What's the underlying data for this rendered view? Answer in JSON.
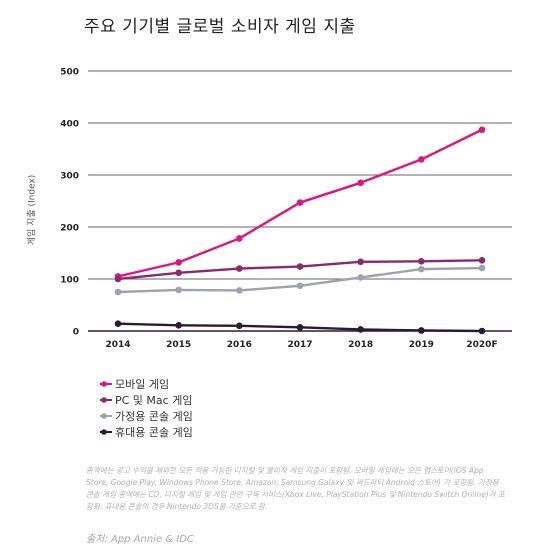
{
  "chart_data": {
    "type": "line",
    "title": "주요 기기별 글로벌 소비자 게임 지출",
    "ylabel": "게임 지출 (Index)",
    "xlabel": "",
    "categories": [
      "2014",
      "2015",
      "2016",
      "2017",
      "2018",
      "2019",
      "2020F"
    ],
    "ylim": [
      0,
      500
    ],
    "yticks": [
      "0",
      "100",
      "200",
      "300",
      "400",
      "500"
    ],
    "grid": true,
    "legend_position": "bottom-left",
    "series": [
      {
        "name": "모바일 게임",
        "color": "#e0147c",
        "values": [
          105,
          132,
          178,
          247,
          285,
          330,
          387
        ]
      },
      {
        "name": "PC 및 Mac 게임",
        "color": "#8a2a6e",
        "values": [
          100,
          112,
          120,
          124,
          133,
          134,
          136
        ]
      },
      {
        "name": "가정용 콘솔 게임",
        "color": "#9aa3ae",
        "values": [
          75,
          79,
          78,
          87,
          103,
          119,
          121
        ]
      },
      {
        "name": "휴대용 콘솔 게임",
        "color": "#2a1a33",
        "values": [
          14,
          11,
          10,
          7,
          3,
          1,
          0
        ]
      }
    ]
  },
  "note": "총액에는 광고 수익을 제외한 모든 적용 가능한 디지털 및 물리적 게임 지출이 포함됨. 모바일 게임에는 모든 앱스토어(iOS App Store, Google Play, Windows Phone Store, Amazon, Samsung Galaxy 및 써드파티 Android 스토어) 가 포함됨. 가정용 콘솔 게임 총액에는 CD, 디지털 게임 및 게임 관련 구독 서비스(Xbox Live, PlayStation Plus 및 Nintendo Switch Online)가 포함됨. 휴대용 콘솔의 경우 Nintendo 3DS을 기준으로 함.",
  "source": "출처: App Annie & IDC"
}
